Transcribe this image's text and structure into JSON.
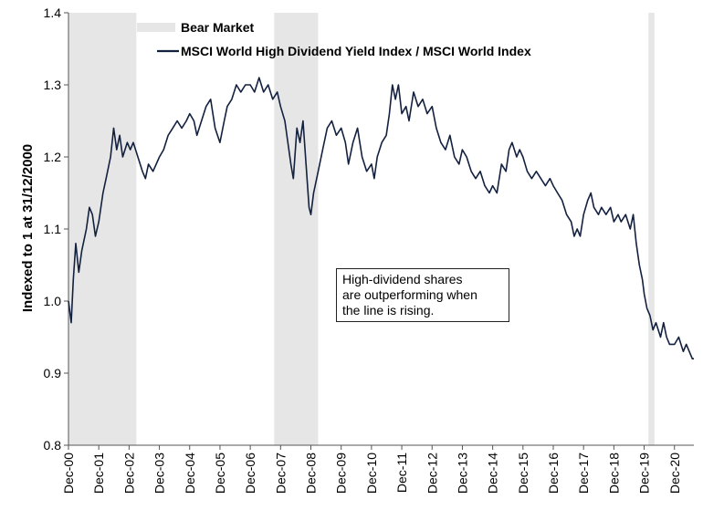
{
  "chart_data": {
    "type": "line",
    "title": "",
    "ylabel": "Indexed to 1 at 31/12/2000",
    "xlabel": "",
    "ylim": [
      0.8,
      1.4
    ],
    "yticks": [
      "0.8",
      "0.9",
      "1.0",
      "1.1",
      "1.2",
      "1.3",
      "1.4"
    ],
    "xlim": [
      2000.96,
      2021.6
    ],
    "xtick_labels": [
      "Dec-00",
      "Dec-01",
      "Dec-02",
      "Dec-03",
      "Dec-04",
      "Dec-05",
      "Dec-06",
      "Dec-07",
      "Dec-08",
      "Dec-09",
      "Dec-10",
      "Dec-11",
      "Dec-12",
      "Dec-13",
      "Dec-14",
      "Dec-15",
      "Dec-16",
      "Dec-17",
      "Dec-18",
      "Dec-19",
      "Dec-20"
    ],
    "grid": false,
    "legend": {
      "placement": "top-left",
      "entries": [
        "Bear Market",
        "MSCI World High Dividend Yield Index / MSCI World Index"
      ]
    },
    "bear_markets": [
      {
        "start": 2000.96,
        "end": 2003.2
      },
      {
        "start": 2007.75,
        "end": 2009.2
      },
      {
        "start": 2020.1,
        "end": 2020.3
      }
    ],
    "series": [
      {
        "name": "MSCI World High Dividend Yield Index / MSCI World Index",
        "color": "#13213f",
        "points": [
          [
            2000.96,
            1.0
          ],
          [
            2001.05,
            0.97
          ],
          [
            2001.12,
            1.03
          ],
          [
            2001.2,
            1.08
          ],
          [
            2001.3,
            1.04
          ],
          [
            2001.4,
            1.07
          ],
          [
            2001.55,
            1.1
          ],
          [
            2001.65,
            1.13
          ],
          [
            2001.75,
            1.12
          ],
          [
            2001.85,
            1.09
          ],
          [
            2001.96,
            1.11
          ],
          [
            2002.1,
            1.15
          ],
          [
            2002.2,
            1.17
          ],
          [
            2002.35,
            1.2
          ],
          [
            2002.45,
            1.24
          ],
          [
            2002.55,
            1.21
          ],
          [
            2002.65,
            1.23
          ],
          [
            2002.75,
            1.2
          ],
          [
            2002.9,
            1.22
          ],
          [
            2003.0,
            1.21
          ],
          [
            2003.1,
            1.22
          ],
          [
            2003.25,
            1.2
          ],
          [
            2003.4,
            1.18
          ],
          [
            2003.5,
            1.17
          ],
          [
            2003.6,
            1.19
          ],
          [
            2003.75,
            1.18
          ],
          [
            2003.96,
            1.2
          ],
          [
            2004.1,
            1.21
          ],
          [
            2004.25,
            1.23
          ],
          [
            2004.4,
            1.24
          ],
          [
            2004.55,
            1.25
          ],
          [
            2004.7,
            1.24
          ],
          [
            2004.85,
            1.25
          ],
          [
            2004.96,
            1.26
          ],
          [
            2005.1,
            1.25
          ],
          [
            2005.2,
            1.23
          ],
          [
            2005.35,
            1.25
          ],
          [
            2005.5,
            1.27
          ],
          [
            2005.65,
            1.28
          ],
          [
            2005.8,
            1.24
          ],
          [
            2005.96,
            1.22
          ],
          [
            2006.1,
            1.25
          ],
          [
            2006.2,
            1.27
          ],
          [
            2006.35,
            1.28
          ],
          [
            2006.5,
            1.3
          ],
          [
            2006.65,
            1.29
          ],
          [
            2006.8,
            1.3
          ],
          [
            2006.96,
            1.3
          ],
          [
            2007.1,
            1.29
          ],
          [
            2007.25,
            1.31
          ],
          [
            2007.4,
            1.29
          ],
          [
            2007.55,
            1.3
          ],
          [
            2007.7,
            1.28
          ],
          [
            2007.85,
            1.29
          ],
          [
            2007.96,
            1.27
          ],
          [
            2008.1,
            1.25
          ],
          [
            2008.2,
            1.22
          ],
          [
            2008.3,
            1.19
          ],
          [
            2008.38,
            1.17
          ],
          [
            2008.5,
            1.24
          ],
          [
            2008.6,
            1.22
          ],
          [
            2008.7,
            1.25
          ],
          [
            2008.8,
            1.19
          ],
          [
            2008.9,
            1.13
          ],
          [
            2008.96,
            1.12
          ],
          [
            2009.05,
            1.15
          ],
          [
            2009.2,
            1.18
          ],
          [
            2009.35,
            1.21
          ],
          [
            2009.5,
            1.24
          ],
          [
            2009.65,
            1.25
          ],
          [
            2009.8,
            1.23
          ],
          [
            2009.96,
            1.24
          ],
          [
            2010.1,
            1.22
          ],
          [
            2010.2,
            1.19
          ],
          [
            2010.35,
            1.22
          ],
          [
            2010.5,
            1.24
          ],
          [
            2010.65,
            1.2
          ],
          [
            2010.8,
            1.18
          ],
          [
            2010.96,
            1.19
          ],
          [
            2011.05,
            1.17
          ],
          [
            2011.15,
            1.2
          ],
          [
            2011.3,
            1.22
          ],
          [
            2011.45,
            1.23
          ],
          [
            2011.55,
            1.26
          ],
          [
            2011.65,
            1.3
          ],
          [
            2011.75,
            1.28
          ],
          [
            2011.85,
            1.3
          ],
          [
            2011.96,
            1.26
          ],
          [
            2012.1,
            1.27
          ],
          [
            2012.2,
            1.25
          ],
          [
            2012.35,
            1.29
          ],
          [
            2012.5,
            1.27
          ],
          [
            2012.65,
            1.28
          ],
          [
            2012.8,
            1.26
          ],
          [
            2012.96,
            1.27
          ],
          [
            2013.1,
            1.24
          ],
          [
            2013.25,
            1.22
          ],
          [
            2013.4,
            1.21
          ],
          [
            2013.55,
            1.23
          ],
          [
            2013.7,
            1.2
          ],
          [
            2013.85,
            1.19
          ],
          [
            2013.96,
            1.21
          ],
          [
            2014.1,
            1.2
          ],
          [
            2014.25,
            1.18
          ],
          [
            2014.4,
            1.17
          ],
          [
            2014.55,
            1.18
          ],
          [
            2014.7,
            1.16
          ],
          [
            2014.85,
            1.15
          ],
          [
            2014.96,
            1.16
          ],
          [
            2015.1,
            1.15
          ],
          [
            2015.25,
            1.19
          ],
          [
            2015.4,
            1.18
          ],
          [
            2015.5,
            1.21
          ],
          [
            2015.6,
            1.22
          ],
          [
            2015.75,
            1.2
          ],
          [
            2015.85,
            1.21
          ],
          [
            2015.96,
            1.2
          ],
          [
            2016.1,
            1.18
          ],
          [
            2016.25,
            1.17
          ],
          [
            2016.4,
            1.18
          ],
          [
            2016.55,
            1.17
          ],
          [
            2016.7,
            1.16
          ],
          [
            2016.85,
            1.17
          ],
          [
            2016.96,
            1.16
          ],
          [
            2017.1,
            1.15
          ],
          [
            2017.25,
            1.14
          ],
          [
            2017.4,
            1.12
          ],
          [
            2017.55,
            1.11
          ],
          [
            2017.65,
            1.09
          ],
          [
            2017.75,
            1.1
          ],
          [
            2017.85,
            1.09
          ],
          [
            2017.96,
            1.12
          ],
          [
            2018.1,
            1.14
          ],
          [
            2018.2,
            1.15
          ],
          [
            2018.3,
            1.13
          ],
          [
            2018.45,
            1.12
          ],
          [
            2018.55,
            1.13
          ],
          [
            2018.7,
            1.12
          ],
          [
            2018.85,
            1.13
          ],
          [
            2018.96,
            1.11
          ],
          [
            2019.1,
            1.12
          ],
          [
            2019.2,
            1.11
          ],
          [
            2019.35,
            1.12
          ],
          [
            2019.5,
            1.1
          ],
          [
            2019.6,
            1.12
          ],
          [
            2019.7,
            1.08
          ],
          [
            2019.8,
            1.05
          ],
          [
            2019.9,
            1.03
          ],
          [
            2019.96,
            1.01
          ],
          [
            2020.05,
            0.99
          ],
          [
            2020.15,
            0.98
          ],
          [
            2020.25,
            0.96
          ],
          [
            2020.35,
            0.97
          ],
          [
            2020.5,
            0.95
          ],
          [
            2020.6,
            0.97
          ],
          [
            2020.7,
            0.95
          ],
          [
            2020.8,
            0.94
          ],
          [
            2020.96,
            0.94
          ],
          [
            2021.1,
            0.95
          ],
          [
            2021.25,
            0.93
          ],
          [
            2021.35,
            0.94
          ],
          [
            2021.45,
            0.93
          ],
          [
            2021.55,
            0.92
          ],
          [
            2021.6,
            0.92
          ]
        ]
      }
    ],
    "annotation": {
      "lines": [
        "High-dividend shares",
        "are outperforming when",
        "the line is rising."
      ]
    }
  }
}
